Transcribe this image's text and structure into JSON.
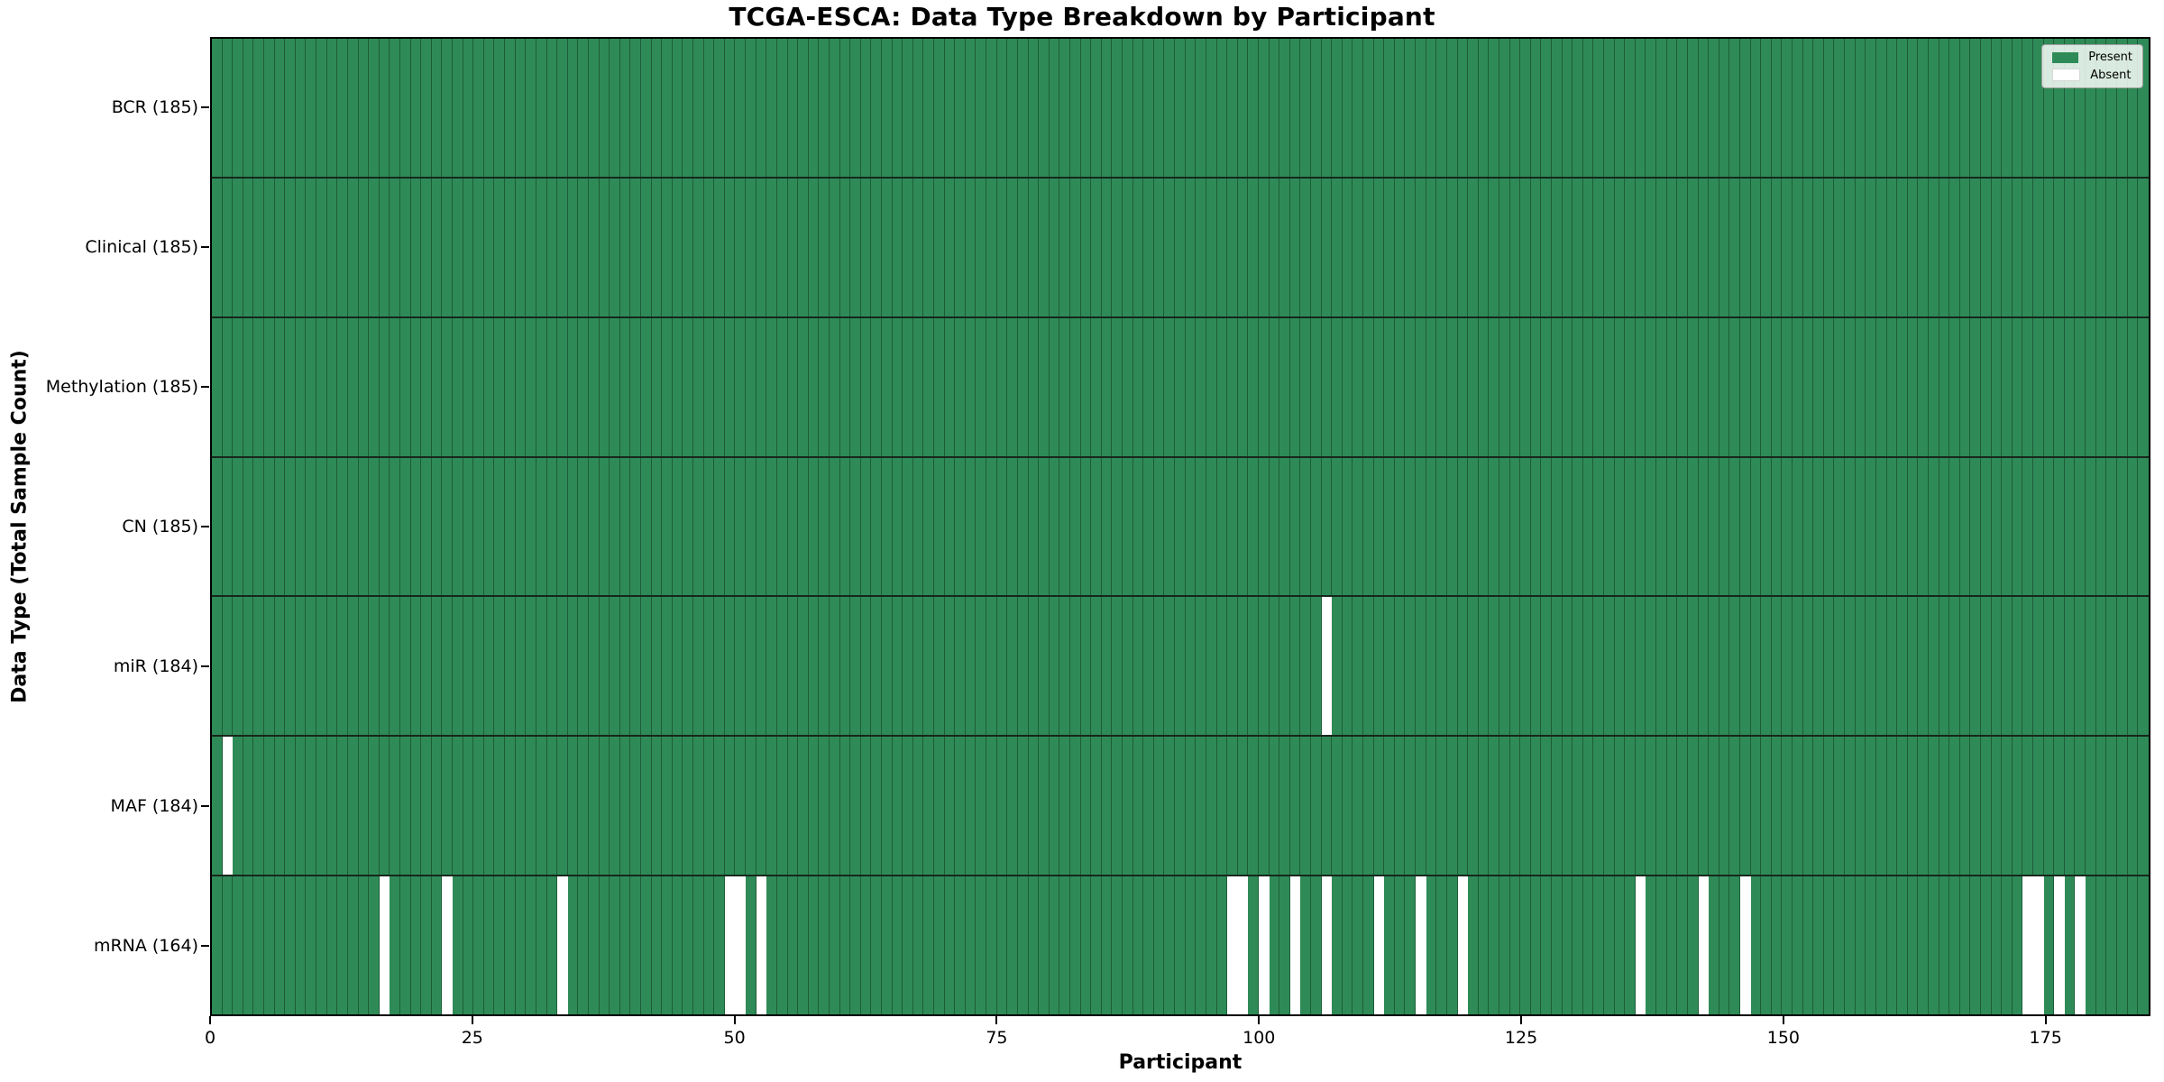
{
  "chart_data": {
    "type": "heatmap",
    "title": "TCGA-ESCA: Data Type Breakdown by Participant",
    "xlabel": "Participant",
    "ylabel": "Data Type (Total Sample Count)",
    "n_participants": 185,
    "x_ticks": [
      0,
      25,
      50,
      75,
      100,
      125,
      150,
      175
    ],
    "grid": "cell-edges-visible",
    "legend_position": "upper-right",
    "legend": [
      {
        "label": "Present",
        "color": "#2e8b57"
      },
      {
        "label": "Absent",
        "color": "#ffffff"
      }
    ],
    "colors": {
      "present": "#2e8b57",
      "absent": "#ffffff",
      "cell_edge": "#1e5c38",
      "row_divider": "#17271d"
    },
    "rows": [
      {
        "label": "BCR (185)",
        "data_type": "BCR",
        "total": 185,
        "absent_participants": []
      },
      {
        "label": "Clinical (185)",
        "data_type": "Clinical",
        "total": 185,
        "absent_participants": []
      },
      {
        "label": "Methylation (185)",
        "data_type": "Methylation",
        "total": 185,
        "absent_participants": []
      },
      {
        "label": "CN (185)",
        "data_type": "CN",
        "total": 185,
        "absent_participants": []
      },
      {
        "label": "miR (184)",
        "data_type": "miR",
        "total": 184,
        "absent_participants": [
          106
        ]
      },
      {
        "label": "MAF (184)",
        "data_type": "MAF",
        "total": 184,
        "absent_participants": [
          1
        ]
      },
      {
        "label": "mRNA (164)",
        "data_type": "mRNA",
        "total": 164,
        "absent_participants": [
          16,
          22,
          33,
          49,
          50,
          52,
          97,
          98,
          100,
          103,
          106,
          111,
          115,
          119,
          136,
          142,
          146,
          173,
          174,
          176,
          178
        ]
      }
    ]
  }
}
